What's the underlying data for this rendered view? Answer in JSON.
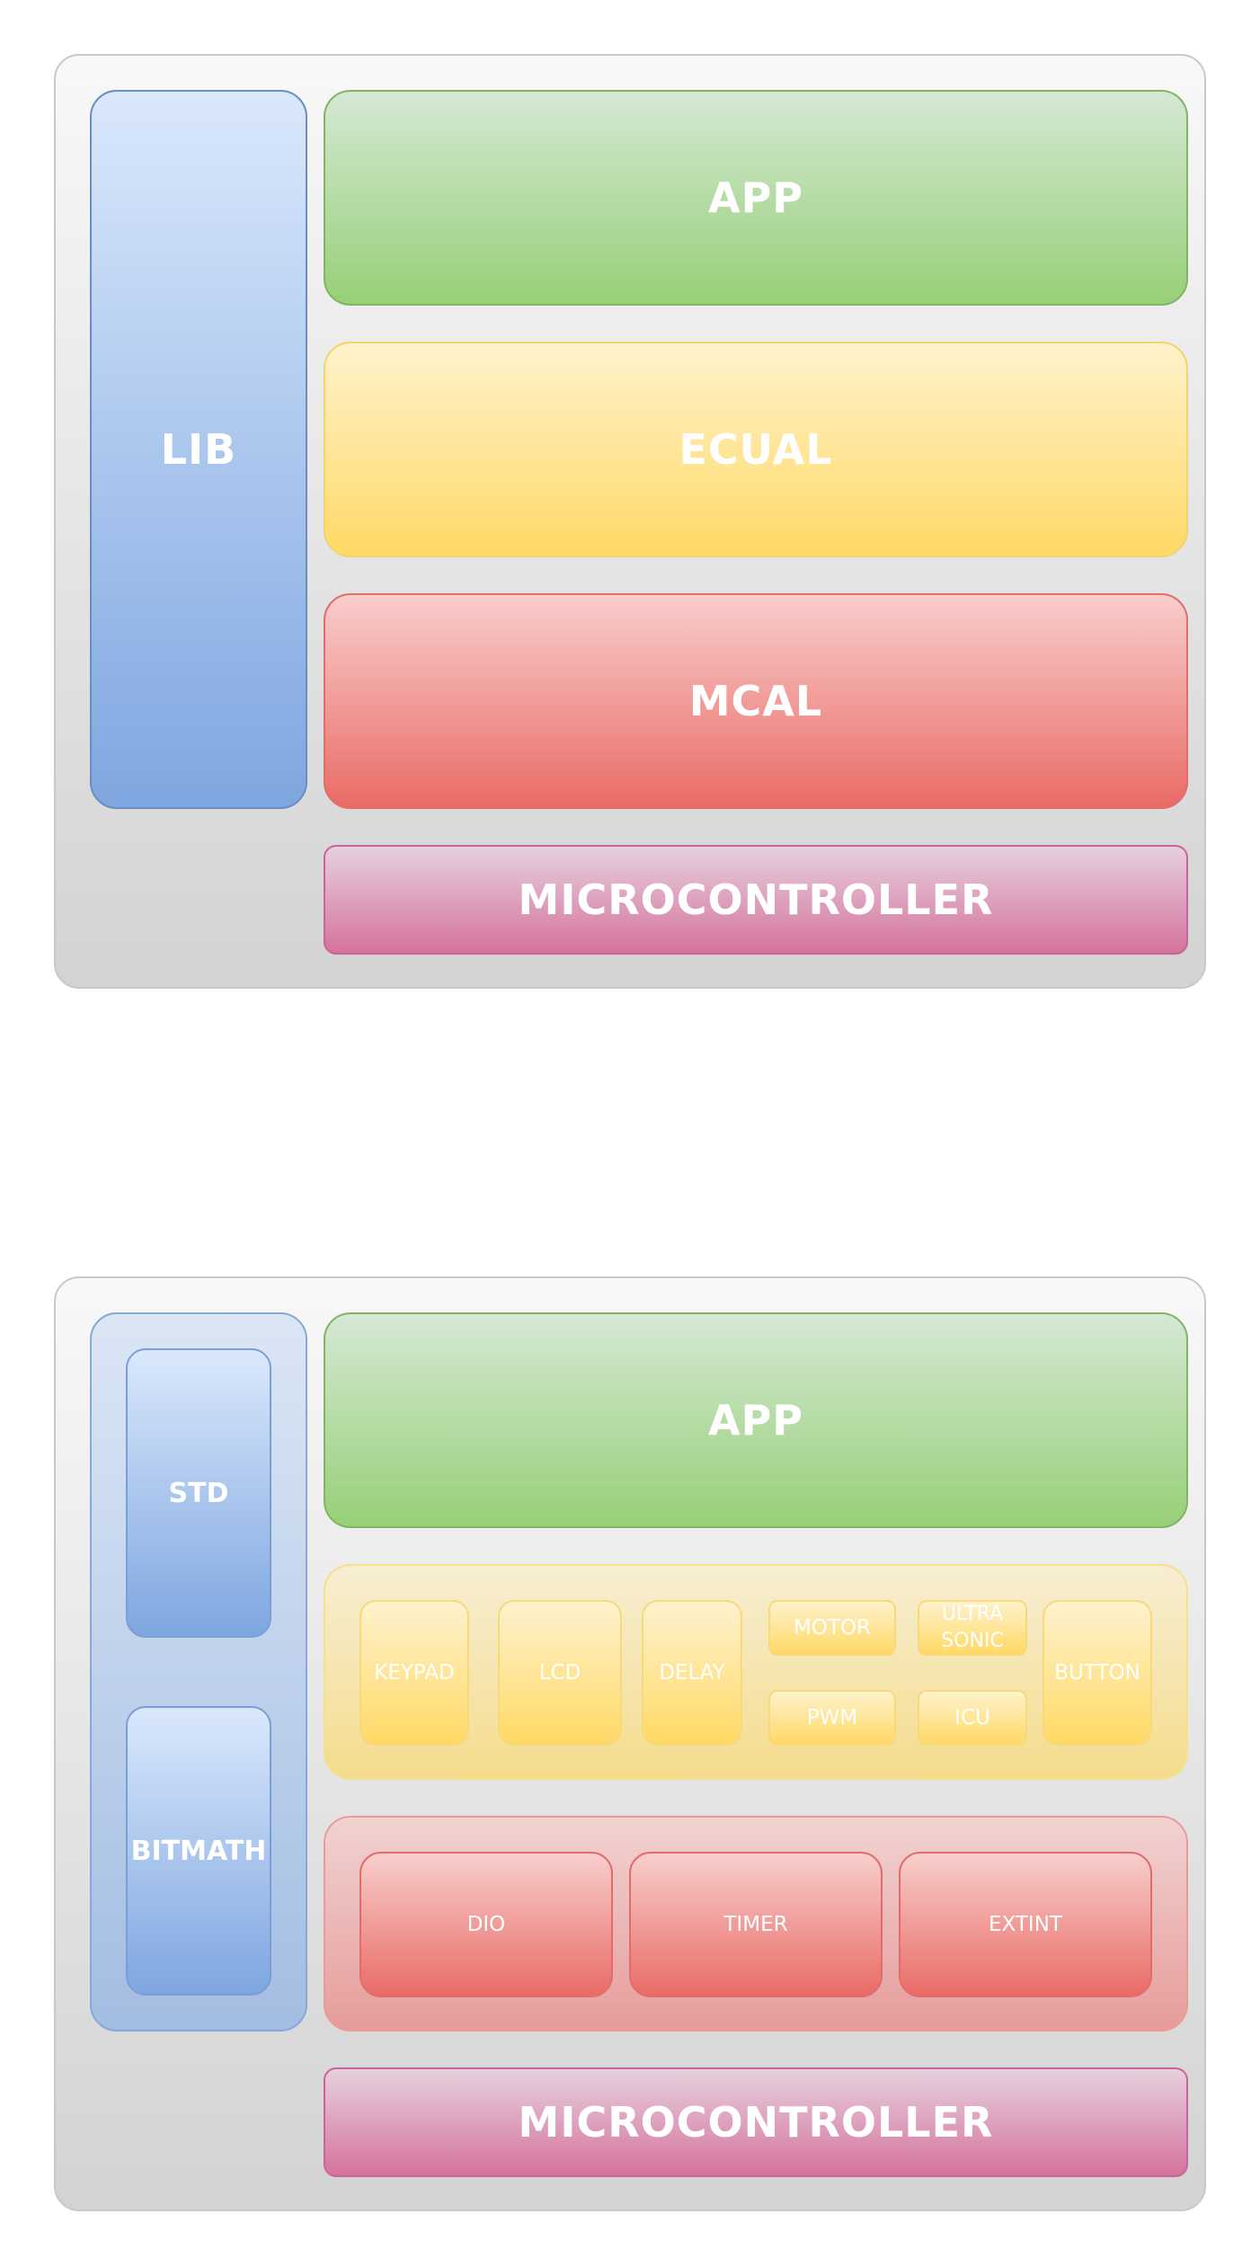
{
  "diagram_top": {
    "app": "APP",
    "ecual": "ECUAL",
    "mcal": "MCAL",
    "lib": "LIB",
    "microcontroller": "MICROCONTROLLER"
  },
  "diagram_bottom": {
    "app": "APP",
    "lib_items": [
      "STD",
      "BITMATH"
    ],
    "ecual_items": {
      "keypad": "KEYPAD",
      "lcd": "LCD",
      "delay": "DELAY",
      "motor": "MOTOR",
      "ultrasonic_line1": "ULTRA",
      "ultrasonic_line2": "SONIC",
      "pwm": "PWM",
      "icu": "ICU",
      "button": "BUTTON"
    },
    "mcal_items": [
      "DIO",
      "TIMER",
      "EXTINT"
    ],
    "microcontroller": "MICROCONTROLLER"
  },
  "colors": {
    "app": "#97d077",
    "ecual": "#ffd966",
    "mcal": "#ea6b66",
    "lib": "#7ea6e0",
    "microcontroller": "#d5739d"
  }
}
